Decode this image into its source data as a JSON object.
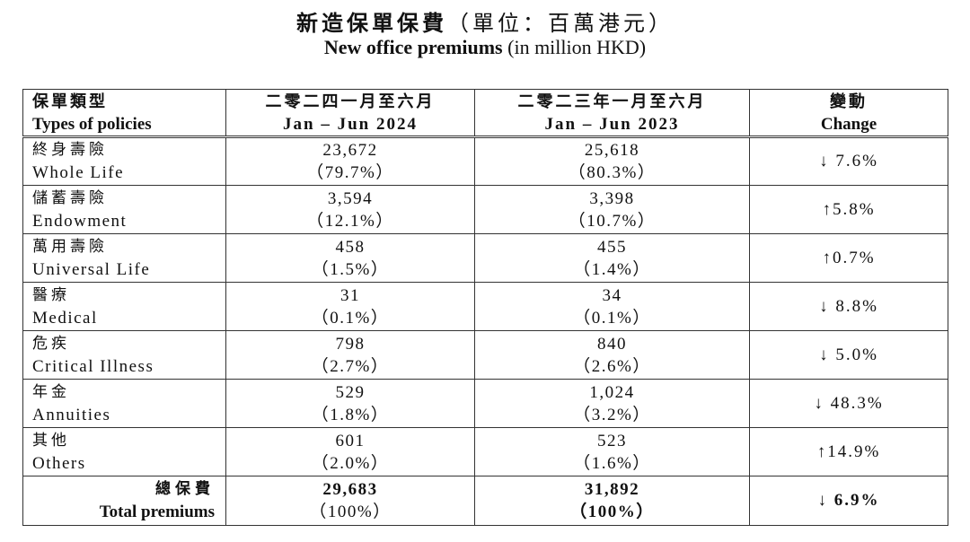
{
  "title": {
    "zh": "新造保單保費",
    "zh_unit": "（單位：百萬港元）",
    "en": "New office premiums",
    "en_unit": "(in million HKD)"
  },
  "headers": {
    "type_zh": "保單類型",
    "type_en": "Types of policies",
    "col2024_zh": "二零二四一月至六月",
    "col2024_en": "Jan – Jun 2024",
    "col2023_zh": "二零二三年一月至六月",
    "col2023_en": "Jan – Jun 2023",
    "change_zh": "變動",
    "change_en": "Change"
  },
  "rows": [
    {
      "zh": "終身壽險",
      "en": "Whole Life",
      "v2024": "23,672",
      "p2024": "（79.7%）",
      "v2023": "25,618",
      "p2023": "（80.3%）",
      "change": "↓ 7.6%"
    },
    {
      "zh": "儲蓄壽險",
      "en": "Endowment",
      "v2024": "3,594",
      "p2024": "（12.1%）",
      "v2023": "3,398",
      "p2023": "（10.7%）",
      "change": "↑5.8%"
    },
    {
      "zh": "萬用壽險",
      "en": "Universal Life",
      "v2024": "458",
      "p2024": "（1.5%）",
      "v2023": "455",
      "p2023": "（1.4%）",
      "change": "↑0.7%"
    },
    {
      "zh": "醫療",
      "en": "Medical",
      "v2024": "31",
      "p2024": "（0.1%）",
      "v2023": "34",
      "p2023": "（0.1%）",
      "change": "↓ 8.8%"
    },
    {
      "zh": "危疾",
      "en": "Critical Illness",
      "v2024": "798",
      "p2024": "（2.7%）",
      "v2023": "840",
      "p2023": "（2.6%）",
      "change": "↓ 5.0%"
    },
    {
      "zh": "年金",
      "en": "Annuities",
      "v2024": "529",
      "p2024": "（1.8%）",
      "v2023": "1,024",
      "p2023": "（3.2%）",
      "change": "↓ 48.3%"
    },
    {
      "zh": "其他",
      "en": "Others",
      "v2024": "601",
      "p2024": "（2.0%）",
      "v2023": "523",
      "p2023": "（1.6%）",
      "change": "↑14.9%"
    }
  ],
  "total": {
    "zh": "總保費",
    "en": "Total premiums",
    "v2024": "29,683",
    "p2024": "（100%）",
    "v2023": "31,892",
    "p2023": "（100%）",
    "change": "↓ 6.9%"
  }
}
